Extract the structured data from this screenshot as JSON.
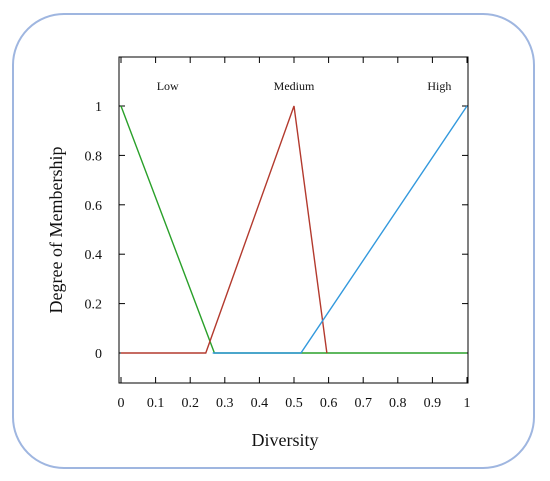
{
  "chart_data": {
    "type": "line",
    "title": "",
    "xlabel": "Diversity",
    "ylabel": "Degree of Membership",
    "xlim": [
      0,
      1
    ],
    "ylim": [
      -0.12,
      1.2
    ],
    "grid": false,
    "x_ticks": [
      "0",
      "0.1",
      "0.2",
      "0.3",
      "0.4",
      "0.5",
      "0.6",
      "0.7",
      "0.8",
      "0.9",
      "1"
    ],
    "y_ticks": [
      "0",
      "0.2",
      "0.4",
      "0.6",
      "0.8",
      "1"
    ],
    "series": [
      {
        "name": "Low",
        "color": "#2aa02a",
        "x": [
          0,
          0.27,
          1
        ],
        "y": [
          1,
          0,
          0
        ],
        "label_x": 0.135
      },
      {
        "name": "Medium",
        "color": "#b33a2e",
        "x": [
          0,
          0.245,
          0.5,
          0.595
        ],
        "y": [
          0,
          0,
          1,
          0
        ],
        "label_x": 0.5
      },
      {
        "name": "High",
        "color": "#3399dd",
        "x": [
          0.265,
          0.52,
          1
        ],
        "y": [
          0,
          0,
          1
        ],
        "label_x": 0.92
      }
    ]
  }
}
